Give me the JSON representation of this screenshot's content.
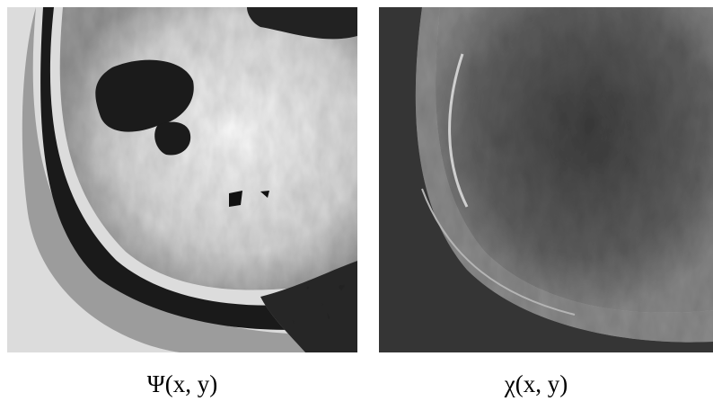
{
  "figure": {
    "panels": [
      {
        "caption": "Ψ(x, y)"
      },
      {
        "caption": "χ(x, y)"
      }
    ]
  }
}
